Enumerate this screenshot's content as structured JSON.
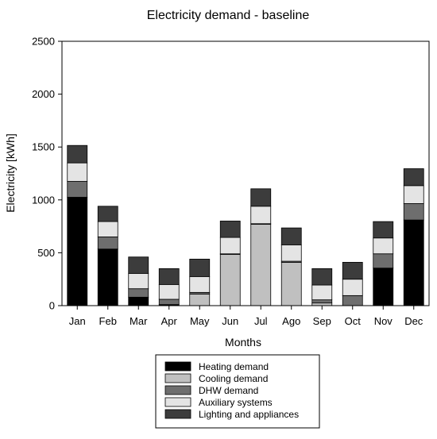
{
  "chart_data": {
    "type": "bar",
    "stacked": true,
    "title": "Electricity demand - baseline",
    "xlabel": "Months",
    "ylabel": "Electricity [kWh]",
    "ylim": [
      0,
      2500
    ],
    "yticks": [
      0,
      500,
      1000,
      1500,
      2000,
      2500
    ],
    "grid": false,
    "legend_position": "bottom",
    "categories": [
      "Jan",
      "Feb",
      "Mar",
      "Apr",
      "May",
      "Jun",
      "Jul",
      "Ago",
      "Sep",
      "Oct",
      "Nov",
      "Dec"
    ],
    "series": [
      {
        "name": "Heating demand",
        "color": "#000000",
        "values": [
          1025,
          535,
          80,
          10,
          0,
          0,
          0,
          0,
          0,
          0,
          355,
          810
        ]
      },
      {
        "name": "Cooling demand",
        "color": "#c0c0c0",
        "values": [
          0,
          0,
          0,
          0,
          110,
          485,
          770,
          410,
          25,
          0,
          0,
          0
        ]
      },
      {
        "name": "DHW demand",
        "color": "#6e6e6e",
        "values": [
          150,
          115,
          80,
          50,
          15,
          5,
          5,
          10,
          30,
          95,
          135,
          155
        ]
      },
      {
        "name": "Auxiliary systems",
        "color": "#e4e4e4",
        "values": [
          175,
          145,
          145,
          140,
          150,
          155,
          165,
          155,
          140,
          155,
          150,
          170
        ]
      },
      {
        "name": "Lighting and appliances",
        "color": "#3c3c3c",
        "values": [
          165,
          145,
          155,
          150,
          165,
          155,
          165,
          160,
          155,
          160,
          155,
          160
        ]
      }
    ]
  }
}
